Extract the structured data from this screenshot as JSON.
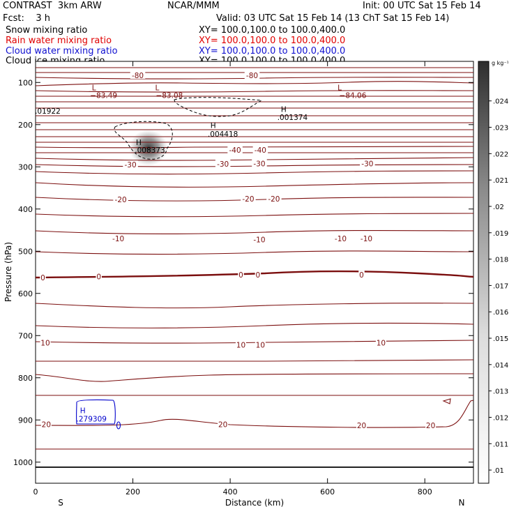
{
  "header": {
    "title": "CONTRAST  3km ARW",
    "center": "NCAR/MMM",
    "init": "Init: 00 UTC Sat 15 Feb 14",
    "fcst": "Fcst:    3 h",
    "valid": "Valid: 03 UTC Sat 15 Feb 14 (13 ChT Sat 15 Feb 14)"
  },
  "legend": [
    {
      "label": "Snow mixing ratio",
      "xy": "XY= 100.0,100.0 to 100.0,400.0",
      "color": "#000000"
    },
    {
      "label": "Rain water mixing ratio",
      "xy": "XY= 100.0,100.0 to 100.0,400.0",
      "color": "#ff0000"
    },
    {
      "label": "Cloud water mixing ratio",
      "xy": "XY= 100.0,100.0 to 100.0,400.0",
      "color": "#0000ff"
    },
    {
      "label": "Cloud ice mixing ratio",
      "xy": "XY= 100.0,100.0 to 100.0,400.0",
      "color": "#000000"
    }
  ],
  "chart_data": {
    "type": "contour",
    "xlabel": "Distance (km)",
    "ylabel": "Pressure (hPa)",
    "xlim": [
      0,
      900
    ],
    "ylim": [
      1050,
      50
    ],
    "x_ticks": [
      0,
      200,
      400,
      600,
      800
    ],
    "y_ticks": [
      100,
      200,
      300,
      400,
      500,
      600,
      700,
      800,
      900,
      1000
    ],
    "x_end_labels": [
      "S",
      "N"
    ],
    "colorbar": {
      "unit": "g kg⁻¹",
      "ticks": [
        ".01",
        ".011",
        ".012",
        ".013",
        ".014",
        ".015",
        ".016",
        ".017",
        ".018",
        ".019",
        ".02",
        ".021",
        ".022",
        ".023",
        ".024"
      ],
      "range": [
        0.0095,
        0.0255
      ]
    },
    "isotherm_color": "#7b0e0e",
    "contour_labels": [
      {
        "text": "-80",
        "x": 210,
        "p": 83
      },
      {
        "text": "-80",
        "x": 445,
        "p": 83
      },
      {
        "text": "-40",
        "x": 410,
        "p": 260
      },
      {
        "text": "-40",
        "x": 462,
        "p": 260
      },
      {
        "text": "-30",
        "x": 195,
        "p": 295
      },
      {
        "text": "-30",
        "x": 385,
        "p": 293
      },
      {
        "text": "-30",
        "x": 460,
        "p": 292
      },
      {
        "text": "-30",
        "x": 682,
        "p": 292
      },
      {
        "text": "-20",
        "x": 175,
        "p": 377
      },
      {
        "text": "-20",
        "x": 437,
        "p": 376
      },
      {
        "text": "-20",
        "x": 490,
        "p": 376
      },
      {
        "text": "-10",
        "x": 170,
        "p": 470
      },
      {
        "text": "-10",
        "x": 460,
        "p": 472
      },
      {
        "text": "-10",
        "x": 627,
        "p": 470
      },
      {
        "text": "-10",
        "x": 680,
        "p": 470
      },
      {
        "text": "0",
        "x": 15,
        "p": 562
      },
      {
        "text": "0",
        "x": 130,
        "p": 560
      },
      {
        "text": "0",
        "x": 422,
        "p": 556
      },
      {
        "text": "0",
        "x": 457,
        "p": 556
      },
      {
        "text": "0",
        "x": 670,
        "p": 556
      },
      {
        "text": "10",
        "x": 20,
        "p": 717
      },
      {
        "text": "10",
        "x": 422,
        "p": 722
      },
      {
        "text": "10",
        "x": 462,
        "p": 722
      },
      {
        "text": "10",
        "x": 710,
        "p": 717
      },
      {
        "text": "20",
        "x": 22,
        "p": 910
      },
      {
        "text": "20",
        "x": 385,
        "p": 910
      },
      {
        "text": "20",
        "x": 670,
        "p": 913
      },
      {
        "text": "20",
        "x": 812,
        "p": 913
      }
    ],
    "extrema_labels": [
      {
        "text": "L",
        "x": 120,
        "p": 112,
        "color": "#7b0e0e"
      },
      {
        "text": "−83.49",
        "x": 140,
        "p": 130,
        "color": "#7b0e0e"
      },
      {
        "text": "L",
        "x": 250,
        "p": 112,
        "color": "#7b0e0e"
      },
      {
        "text": "−83.08",
        "x": 275,
        "p": 130,
        "color": "#7b0e0e"
      },
      {
        "text": "L",
        "x": 625,
        "p": 112,
        "color": "#7b0e0e"
      },
      {
        "text": "−84.06",
        "x": 652,
        "p": 130,
        "color": "#7b0e0e"
      },
      {
        "text": ".01922",
        "x": 25,
        "p": 167,
        "color": "#000000"
      },
      {
        "text": "H",
        "x": 510,
        "p": 163,
        "color": "#000000"
      },
      {
        "text": ".001374",
        "x": 528,
        "p": 182,
        "color": "#000000"
      },
      {
        "text": "H",
        "x": 365,
        "p": 201,
        "color": "#000000"
      },
      {
        "text": ".004418",
        "x": 385,
        "p": 222,
        "color": "#000000"
      },
      {
        "text": "H",
        "x": 212,
        "p": 242,
        "color": "#000000"
      },
      {
        "text": ".008373",
        "x": 235,
        "p": 260,
        "color": "#000000"
      },
      {
        "text": "H",
        "x": 97,
        "p": 877,
        "color": "#0000cc"
      },
      {
        "text": ".279309",
        "x": 115,
        "p": 897,
        "color": "#0000cc"
      }
    ]
  }
}
